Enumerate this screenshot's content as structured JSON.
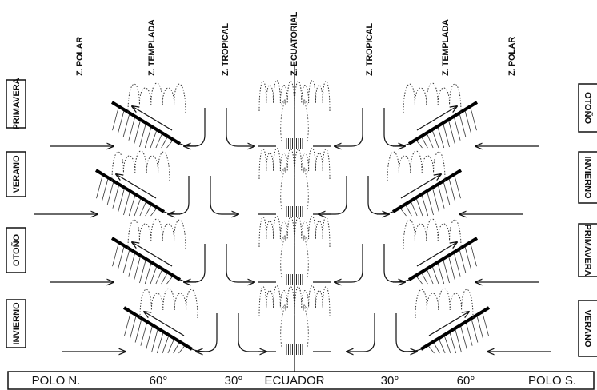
{
  "zones": [
    "Z. POLAR",
    "Z. TEMPLADA",
    "Z. TROPICAL",
    "Z. ECUATORIAL",
    "Z. TROPICAL",
    "Z. TEMPLADA",
    "Z. POLAR"
  ],
  "seasons_left": [
    "PRIMAVERA",
    "VERANO",
    "OTOÑO",
    "INVIERNO"
  ],
  "seasons_right": [
    "OTOÑO",
    "INVIERNO",
    "PRIMAVERA",
    "VERANO"
  ],
  "latitudes": [
    "POLO N.",
    "60°",
    "30°",
    "ECUADOR",
    "30°",
    "60°",
    "POLO S."
  ]
}
